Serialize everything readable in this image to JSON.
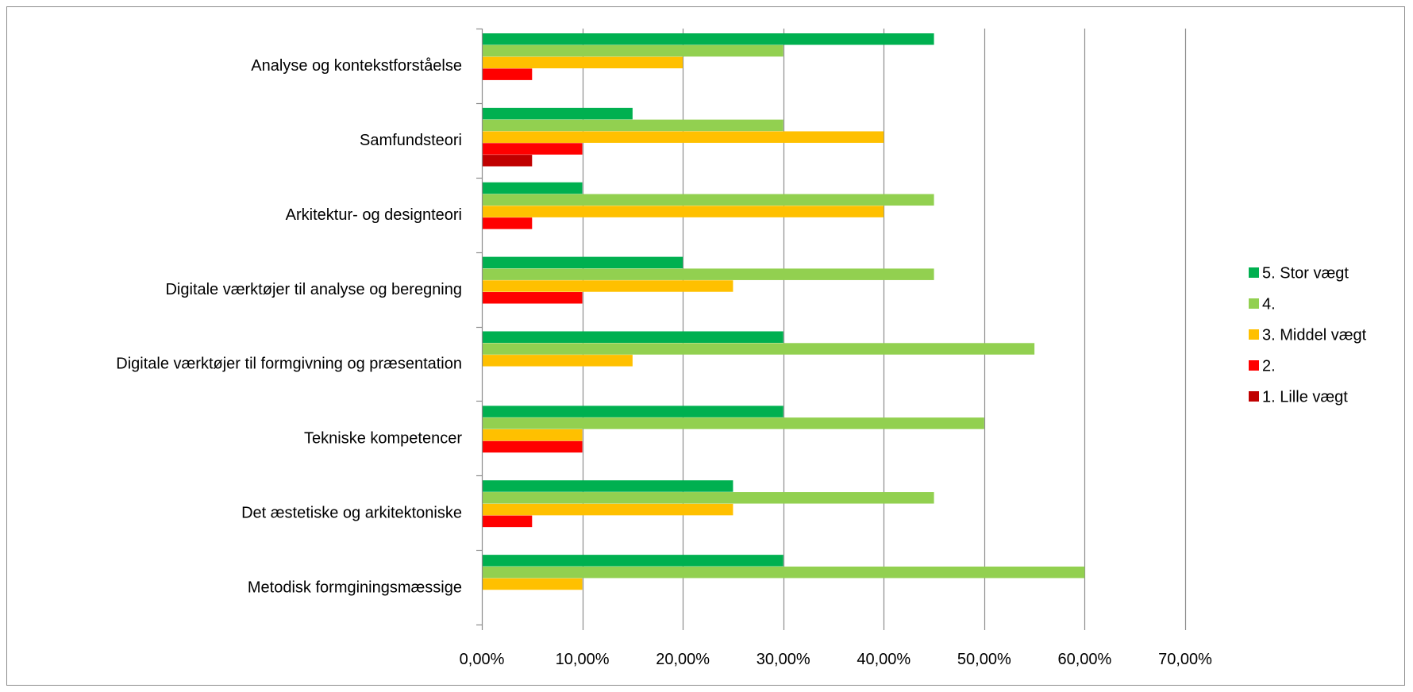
{
  "chart_data": {
    "type": "bar",
    "orientation": "horizontal",
    "title": "",
    "xlabel": "",
    "ylabel": "",
    "xlim": [
      0,
      0.7
    ],
    "x_ticks": [
      0,
      0.1,
      0.2,
      0.3,
      0.4,
      0.5,
      0.6,
      0.7
    ],
    "x_tick_labels": [
      "0,00%",
      "10,00%",
      "20,00%",
      "30,00%",
      "40,00%",
      "50,00%",
      "60,00%",
      "70,00%"
    ],
    "grid": "vertical major gridlines",
    "legend_position": "right",
    "categories": [
      "Analyse og kontekstforståelse",
      "Samfundsteori",
      "Arkitektur- og designteori",
      "Digitale værktøjer til analyse og beregning",
      "Digitale værktøjer til formgivning og præsentation",
      "Tekniske kompetencer",
      "Det æstetiske og arkitektoniske",
      "Metodisk formginingsmæssige"
    ],
    "series": [
      {
        "name": "5. Stor vægt",
        "color": "#00b050",
        "values": [
          0.45,
          0.15,
          0.1,
          0.2,
          0.3,
          0.3,
          0.25,
          0.3
        ]
      },
      {
        "name": "4.",
        "color": "#92d050",
        "values": [
          0.3,
          0.3,
          0.45,
          0.45,
          0.55,
          0.5,
          0.45,
          0.6
        ]
      },
      {
        "name": "3. Middel vægt",
        "color": "#ffc000",
        "values": [
          0.2,
          0.4,
          0.4,
          0.25,
          0.15,
          0.1,
          0.25,
          0.1
        ]
      },
      {
        "name": "2.",
        "color": "#ff0000",
        "values": [
          0.05,
          0.1,
          0.05,
          0.1,
          0,
          0.1,
          0.05,
          0
        ]
      },
      {
        "name": "1. Lille vægt",
        "color": "#c00000",
        "values": [
          0,
          0.05,
          0,
          0,
          0,
          0,
          0,
          0
        ]
      }
    ]
  }
}
